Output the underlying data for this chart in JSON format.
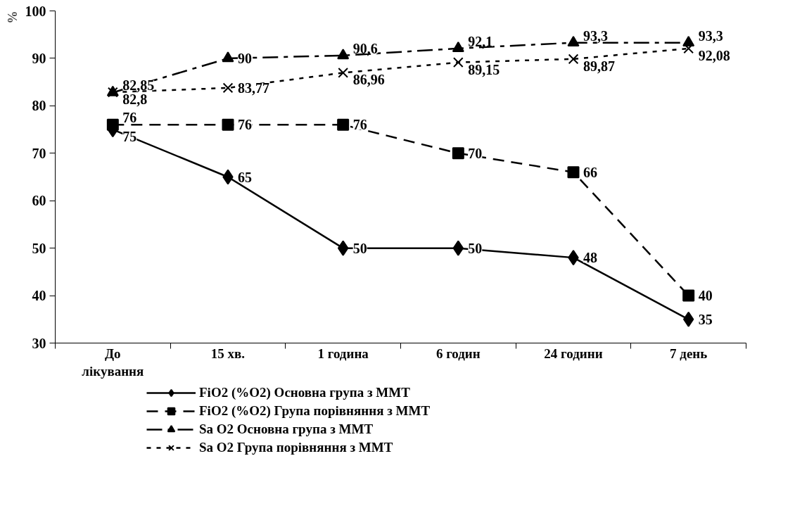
{
  "chart_data": {
    "type": "line",
    "ylabel": "%",
    "categories": [
      "До лікування",
      "15 хв.",
      "1 година",
      "6 годин",
      "24 години",
      "7 день"
    ],
    "ylim": [
      30,
      100
    ],
    "yticks": [
      30,
      40,
      50,
      60,
      70,
      80,
      90,
      100
    ],
    "grid": false,
    "legend": "bottom",
    "series": [
      {
        "name": "FiO2 (%O2) Основна група з ММТ",
        "color": "#000000",
        "marker": "diamond",
        "line_style": "solid",
        "values": [
          75,
          65,
          50,
          50,
          48,
          35
        ],
        "value_labels": [
          "75",
          "65",
          "50",
          "50",
          "48",
          "35"
        ]
      },
      {
        "name": "FiO2 (%O2) Група порівняння з ММТ",
        "color": "#000000",
        "marker": "square",
        "line_style": "dashed",
        "values": [
          76,
          76,
          76,
          70,
          66,
          40
        ],
        "value_labels": [
          "76",
          "76",
          "76",
          "70",
          "66",
          "40"
        ]
      },
      {
        "name": "Sa O2 Основна група з ММТ",
        "color": "#000000",
        "marker": "triangle",
        "line_style": "dashdot",
        "values": [
          82.8,
          90,
          90.6,
          92.1,
          93.3,
          93.3
        ],
        "value_labels": [
          "82,8",
          "90",
          "90,6",
          "92,1",
          "93,3",
          "93,3"
        ]
      },
      {
        "name": "Sa O2 Група порівняння з ММТ",
        "color": "#000000",
        "marker": "cross",
        "line_style": "dotted",
        "values": [
          82.85,
          83.77,
          86.96,
          89.15,
          89.87,
          92.08
        ],
        "value_labels": [
          "82,85",
          "83,77",
          "86,96",
          "89,15",
          "89,87",
          "92,08"
        ]
      }
    ]
  }
}
